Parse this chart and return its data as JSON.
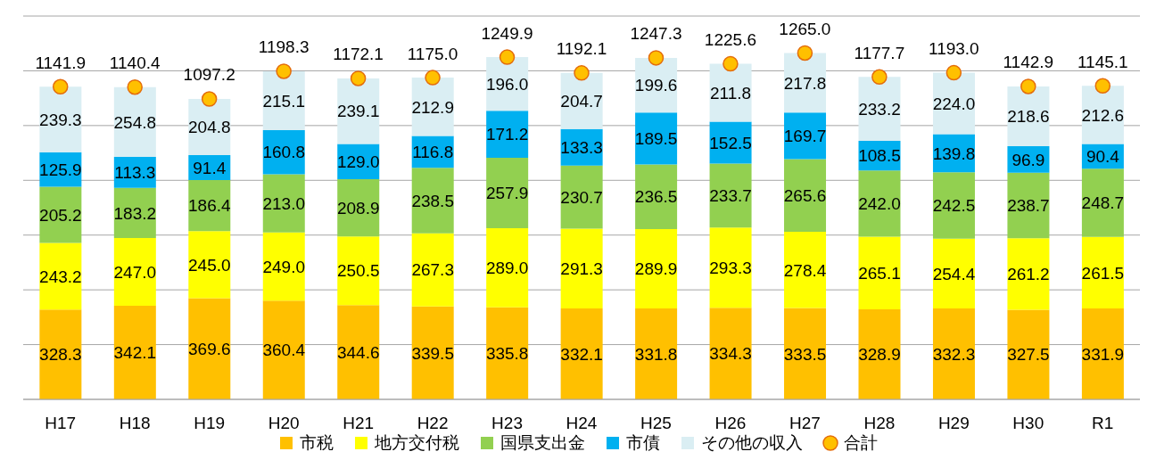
{
  "chart_data": {
    "type": "bar",
    "stacked": true,
    "categories": [
      "H17",
      "H18",
      "H19",
      "H20",
      "H21",
      "H22",
      "H23",
      "H24",
      "H25",
      "H26",
      "H27",
      "H28",
      "H29",
      "H30",
      "R1"
    ],
    "series": [
      {
        "name": "市税",
        "color": "#ffc000",
        "values": [
          328.3,
          342.1,
          369.6,
          360.4,
          344.6,
          339.5,
          335.8,
          332.1,
          331.8,
          334.3,
          333.5,
          328.9,
          332.3,
          327.5,
          331.9
        ],
        "value_labels": [
          "328.3",
          "342.1",
          "369.6",
          "360.4",
          "344.6",
          "339.5",
          "335.8",
          "332.1",
          "331.8",
          "334.3",
          "333.5",
          "328.9",
          "332.3",
          "327.5",
          "331.9"
        ]
      },
      {
        "name": "地方交付税",
        "color": "#ffff00",
        "values": [
          243.2,
          247.0,
          245.0,
          249.0,
          250.5,
          267.3,
          289.0,
          291.3,
          289.9,
          293.3,
          278.4,
          265.1,
          254.4,
          261.2,
          261.5
        ],
        "value_labels": [
          "243.2",
          "247.0",
          "245.0",
          "249.0",
          "250.5",
          "267.3",
          "289.0",
          "291.3",
          "289.9",
          "293.3",
          "278.4",
          "265.1",
          "254.4",
          "261.2",
          "261.5"
        ]
      },
      {
        "name": "国県支出金",
        "color": "#92d050",
        "values": [
          205.2,
          183.2,
          186.4,
          213.0,
          208.9,
          238.5,
          257.9,
          230.7,
          236.5,
          233.7,
          265.6,
          242.0,
          242.5,
          238.7,
          248.7
        ],
        "value_labels": [
          "205.2",
          "183.2",
          "186.4",
          "213.0",
          "208.9",
          "238.5",
          "257.9",
          "230.7",
          "236.5",
          "233.7",
          "265.6",
          "242.0",
          "242.5",
          "238.7",
          "248.7"
        ]
      },
      {
        "name": "市債",
        "color": "#00b0f0",
        "values": [
          125.9,
          113.3,
          91.4,
          160.8,
          129.0,
          116.8,
          171.2,
          133.3,
          189.5,
          152.5,
          169.7,
          108.5,
          139.8,
          96.9,
          90.4
        ],
        "value_labels": [
          "125.9",
          "113.3",
          "91.4",
          "160.8",
          "129.0",
          "116.8",
          "171.2",
          "133.3",
          "189.5",
          "152.5",
          "169.7",
          "108.5",
          "139.8",
          "96.9",
          "90.4"
        ]
      },
      {
        "name": "その他の収入",
        "color": "#daeef3",
        "values": [
          239.3,
          254.8,
          204.8,
          215.1,
          239.1,
          212.9,
          196.0,
          204.7,
          199.6,
          211.8,
          217.8,
          233.2,
          224.0,
          218.6,
          212.6
        ],
        "value_labels": [
          "239.3",
          "254.8",
          "204.8",
          "215.1",
          "239.1",
          "212.9",
          "196.0",
          "204.7",
          "199.6",
          "211.8",
          "217.8",
          "233.2",
          "224.0",
          "218.6",
          "212.6"
        ]
      },
      {
        "name": "合計",
        "type": "scatter",
        "color": "#ffc000",
        "values": [
          1141.9,
          1140.4,
          1097.2,
          1198.3,
          1172.1,
          1175.0,
          1249.9,
          1192.1,
          1247.3,
          1225.6,
          1265.0,
          1177.7,
          1193.0,
          1142.9,
          1145.1
        ],
        "value_labels": [
          "1141.9",
          "1140.4",
          "1097.2",
          "1198.3",
          "1172.1",
          "1175.0",
          "1249.9",
          "1192.1",
          "1247.3",
          "1225.6",
          "1265.0",
          "1177.7",
          "1193.0",
          "1142.9",
          "1145.1"
        ]
      }
    ],
    "ylim": [
      0,
      1400
    ],
    "yticks": [
      {
        "value": 0,
        "label": null
      },
      {
        "value": 200,
        "label": null
      },
      {
        "value": 400,
        "label": null
      },
      {
        "value": 600,
        "label": null
      },
      {
        "value": 800,
        "label": null
      },
      {
        "value": 1000,
        "label": null
      },
      {
        "value": 1200,
        "label": null
      },
      {
        "value": 1400,
        "label": null
      }
    ],
    "tick_labels": "x",
    "grid": "y",
    "legend": "bottom",
    "marker": "circle"
  }
}
